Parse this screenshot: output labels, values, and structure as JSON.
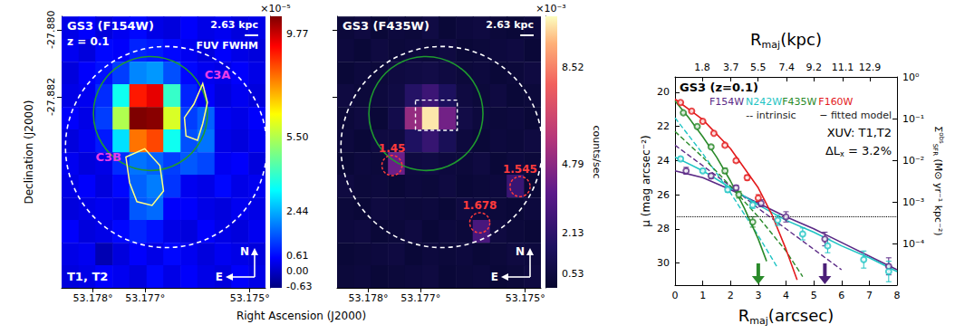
{
  "chart_data": [
    {
      "type": "heatmap",
      "title": "GS3 (F154W)",
      "subtitle": "z = 0.1",
      "annotation": "T1, T2",
      "scale_bar": {
        "label": "2.63 kpc",
        "length": 0.0004,
        "note": "FUV FWHM"
      },
      "compass": [
        "N",
        "E"
      ],
      "xlabel": "Right Ascension (J2000)",
      "ylabel": "Declination (J2000)",
      "xlim": [
        53.1786,
        53.1747
      ],
      "ylim": [
        -27.8877,
        -27.8796
      ],
      "xticks": [
        {
          "value": 53.178,
          "label": "53.178°"
        },
        {
          "value": 53.177,
          "label": "53.177°"
        },
        {
          "value": 53.175,
          "label": "53.175°"
        }
      ],
      "yticks": [
        {
          "value": -27.88,
          "label": "-27.880"
        },
        -27.882
      ],
      "cells": {
        "ra": [
          53.17844,
          53.17811,
          53.17779,
          53.17746,
          53.17714,
          53.17681,
          53.17649,
          53.17616,
          53.17584,
          53.17551,
          53.17519,
          53.17486
        ],
        "dec": [
          -27.87994,
          -27.88061,
          -27.88129,
          -27.88196,
          -27.88264,
          -27.88331,
          -27.88399,
          -27.88466,
          -27.88534,
          -27.88601,
          -27.88669,
          -27.88736
        ],
        "values": [
          [
            0.3,
            0.5,
            0.2,
            0.4,
            0.6,
            0.3,
            0.2,
            0.5,
            0.3,
            0.4,
            0.2,
            0.3
          ],
          [
            0.4,
            0.2,
            0.6,
            0.5,
            0.9,
            0.8,
            0.6,
            0.4,
            0.2,
            0.5,
            0.3,
            0.2
          ],
          [
            0.2,
            0.5,
            0.7,
            1.2,
            2.0,
            2.2,
            1.4,
            0.6,
            0.4,
            0.3,
            0.5,
            0.3
          ],
          [
            0.3,
            0.4,
            1.0,
            3.5,
            9.0,
            9.5,
            4.0,
            0.9,
            0.5,
            0.2,
            0.4,
            0.2
          ],
          [
            0.5,
            0.3,
            1.2,
            5.5,
            10.5,
            10.4,
            6.0,
            1.2,
            1.6,
            0.4,
            0.3,
            0.5
          ],
          [
            0.2,
            0.4,
            0.8,
            3.0,
            8.0,
            8.5,
            3.5,
            1.4,
            1.8,
            0.3,
            0.2,
            0.4
          ],
          [
            0.4,
            0.2,
            0.3,
            1.0,
            1.8,
            1.6,
            1.2,
            1.5,
            1.3,
            0.4,
            0.5,
            0.2
          ],
          [
            0.3,
            0.5,
            0.2,
            0.6,
            1.6,
            1.9,
            1.1,
            0.4,
            0.3,
            0.6,
            0.3,
            0.4
          ],
          [
            0.2,
            0.3,
            0.4,
            0.3,
            1.5,
            1.7,
            0.5,
            0.5,
            0.3,
            0.2,
            0.4,
            0.3
          ],
          [
            0.5,
            0.2,
            0.3,
            0.6,
            0.9,
            0.7,
            0.3,
            0.2,
            0.5,
            0.3,
            0.2,
            0.4
          ],
          [
            0.3,
            0.4,
            -0.2,
            0.2,
            0.5,
            0.3,
            0.6,
            0.4,
            0.2,
            0.4,
            0.3,
            0.2
          ],
          [
            0.2,
            0.3,
            0.5,
            0.4,
            0.2,
            0.6,
            0.3,
            0.5,
            0.3,
            0.2,
            0.5,
            0.3
          ]
        ]
      },
      "colorbar": {
        "label": "×10⁻⁵",
        "lim": [
          -0.7,
          10.5
        ],
        "ticks": [
          -0.63,
          {
            "value": 0,
            "label": "0.00"
          },
          0.61,
          2.44,
          {
            "value": 5.5,
            "label": "5.50"
          },
          9.77
        ]
      },
      "apertures": [
        {
          "ra": 53.1766,
          "dec": -27.8835,
          "radius": 0.003,
          "color": "#ffffff",
          "line_style": "dashed"
        },
        {
          "ra": 53.1769,
          "dec": -27.8825,
          "radius": 0.0017,
          "color": "#1f9a2f",
          "line_style": "solid"
        }
      ],
      "regions": [
        {
          "label": "C3A",
          "color": "#e83de8",
          "ra": [
            53.1759,
            53.17581,
            53.1759,
            53.176,
            53.17622,
            53.17625,
            53.17607
          ],
          "dec": [
            -27.88161,
            -27.88217,
            -27.8828,
            -27.8833,
            -27.88317,
            -27.88262,
            -27.88222
          ]
        },
        {
          "label": "C3B",
          "color": "#e83de8",
          "ra": [
            53.17737,
            53.17701,
            53.17672,
            53.17665,
            53.17687,
            53.17716,
            53.1773
          ],
          "dec": [
            -27.8838,
            -27.88355,
            -27.88405,
            -27.88481,
            -27.88524,
            -27.88513,
            -27.88456
          ]
        }
      ]
    },
    {
      "type": "heatmap",
      "title": "GS3 (F435W)",
      "scale_bar": {
        "label": "2.63 kpc",
        "length": 0.0004
      },
      "compass": [
        "N",
        "E"
      ],
      "tick_labels": "x",
      "xlim": [
        53.1786,
        53.1747
      ],
      "ylim": [
        -27.8877,
        -27.8796
      ],
      "xticks": [
        {
          "value": 53.178,
          "label": "53.178°"
        },
        {
          "value": 53.177,
          "label": "53.177°"
        },
        {
          "value": 53.175,
          "label": "53.175°"
        }
      ],
      "yticks": [
        {
          "value": -27.88,
          "label": "-27.880"
        },
        -27.882
      ],
      "cells": {
        "ra": [
          53.17844,
          53.17811,
          53.17779,
          53.17746,
          53.17714,
          53.17681,
          53.17649,
          53.17616,
          53.17584,
          53.17551,
          53.17519,
          53.17486
        ],
        "dec": [
          -27.87994,
          -27.88061,
          -27.88129,
          -27.88196,
          -27.88264,
          -27.88331,
          -27.88399,
          -27.88466,
          -27.88534,
          -27.88601,
          -27.88669,
          -27.88736
        ],
        "values": [
          [
            0.4,
            0.6,
            0.3,
            0.5,
            0.4,
            0.7,
            0.3,
            0.5,
            0.6,
            0.4,
            0.3,
            0.5
          ],
          [
            0.5,
            0.3,
            0.6,
            0.4,
            0.5,
            0.4,
            0.6,
            0.3,
            0.4,
            0.5,
            0.6,
            0.3
          ],
          [
            0.3,
            0.5,
            0.4,
            0.6,
            0.7,
            0.8,
            0.6,
            0.4,
            0.5,
            0.3,
            0.4,
            0.6
          ],
          [
            0.6,
            0.4,
            0.5,
            0.7,
            1.8,
            2.6,
            1.5,
            0.6,
            0.4,
            0.6,
            0.3,
            0.4
          ],
          [
            0.4,
            0.6,
            0.3,
            0.9,
            5.0,
            10.2,
            4.2,
            0.8,
            0.5,
            0.4,
            0.5,
            0.3
          ],
          [
            0.5,
            0.3,
            0.6,
            0.6,
            1.6,
            2.4,
            1.3,
            0.5,
            0.3,
            0.5,
            0.4,
            0.6
          ],
          [
            0.3,
            0.5,
            0.4,
            4.0,
            0.6,
            0.7,
            0.5,
            0.4,
            0.6,
            0.3,
            0.5,
            0.4
          ],
          [
            0.6,
            0.4,
            0.5,
            0.3,
            0.5,
            0.4,
            0.6,
            0.3,
            0.4,
            0.5,
            2.5,
            0.3
          ],
          [
            0.4,
            0.3,
            0.6,
            0.5,
            0.4,
            0.5,
            0.3,
            0.6,
            0.5,
            0.4,
            0.3,
            0.5
          ],
          [
            0.5,
            0.6,
            0.3,
            0.4,
            0.6,
            0.3,
            0.5,
            0.4,
            3.0,
            0.6,
            0.4,
            0.3
          ],
          [
            0.3,
            0.4,
            0.5,
            0.6,
            0.3,
            0.5,
            0.4,
            0.5,
            0.3,
            0.4,
            0.6,
            0.5
          ],
          [
            0.4,
            0.5,
            0.3,
            0.4,
            0.5,
            0.6,
            0.3,
            0.4,
            0.5,
            0.3,
            0.4,
            0.6
          ]
        ]
      },
      "colorbar": {
        "label": "×10⁻³",
        "title": "counts/sec",
        "lim": [
          0,
          10.5
        ],
        "ticks": [
          0.53,
          2.13,
          4.79,
          8.52
        ]
      },
      "apertures": [
        {
          "ra": 53.1766,
          "dec": -27.8835,
          "radius": 0.003,
          "color": "#ffffff",
          "line_style": "dashed"
        },
        {
          "ra": 53.1769,
          "dec": -27.8825,
          "radius": 0.0017,
          "color": "#1f9a2f",
          "line_style": "solid"
        }
      ],
      "box": {
        "ra": [
          53.1771,
          53.1763
        ],
        "dec": [
          -27.8821,
          -27.883
        ],
        "color": "#ffffff",
        "line_style": "dashed"
      },
      "sources": [
        {
          "ra": 53.17755,
          "dec": -27.88405,
          "radius": 0.0003,
          "label": "1.45",
          "color": "#ff3b3b",
          "line_style": "dashed"
        },
        {
          "ra": 53.17587,
          "dec": -27.88576,
          "radius": 0.0003,
          "label": "1.678",
          "color": "#ff3b3b",
          "line_style": "dashed"
        },
        {
          "ra": 53.1751,
          "dec": -27.88468,
          "radius": 0.0003,
          "label": "1.545",
          "color": "#ff3b3b",
          "line_style": "dashed"
        }
      ]
    },
    {
      "type": "line",
      "title": "GS3 (z=0.1)",
      "xlabel": {
        "base": "R",
        "sub": "maj",
        "rest": "(arcsec)"
      },
      "x2label": {
        "base": "R",
        "sub": "maj",
        "rest": "(kpc)"
      },
      "ylabel": "μ (mag arcsec⁻²)",
      "y2label": {
        "base": "Σ",
        "sup": "obs",
        "sub": "SFR",
        "rest": " (M⊙ yr⁻¹ kpc⁻²)"
      },
      "xlim": [
        0,
        8
      ],
      "xticks": [
        0,
        1,
        2,
        3,
        4,
        5,
        6,
        7,
        8
      ],
      "x2lim": [
        0,
        14.7
      ],
      "x2ticks": [
        1.8,
        3.7,
        5.5,
        7.4,
        9.2,
        11.1,
        12.9
      ],
      "ylim": [
        31.3,
        19.1
      ],
      "yticks": [
        20,
        22,
        24,
        26,
        28,
        30
      ],
      "y2lim": [
        1e-05,
        1
      ],
      "y2ticks": [
        {
          "value": 1,
          "label": "10⁰"
        },
        {
          "value": 0.1,
          "label": "10⁻¹"
        },
        {
          "value": 0.01,
          "label": "10⁻²"
        },
        {
          "value": 0.001,
          "label": "10⁻³"
        },
        {
          "value": 0.0001,
          "label": "10⁻⁴"
        }
      ],
      "log": "y2",
      "grid": false,
      "legend": "upper left",
      "legend_notes": [
        "-- intrinsic",
        "− fitted model"
      ],
      "annotations": [
        "XUV: T1,T2"
      ],
      "delta": {
        "base": "ΔL",
        "sub": "x",
        "rest": " = 3.2%"
      },
      "series": [
        {
          "name": "F154W",
          "color": "#5b2a86",
          "observed": {
            "x": [
              0.4,
              1.3,
              2.2,
              3.1,
              4.0,
              5.4,
              7.7
            ],
            "values": [
              24.6,
              24.9,
              25.6,
              26.5,
              27.3,
              28.6,
              30.2
            ],
            "errors": [
              0.2,
              0.15,
              0.15,
              0.2,
              0.3,
              0.4,
              0.5
            ]
          },
          "model": {
            "x": [
              0,
              1,
              2,
              3,
              4,
              5,
              6,
              7,
              8
            ],
            "values": [
              24.6,
              25.0,
              25.7,
              26.5,
              27.3,
              28.0,
              28.8,
              29.6,
              30.4
            ]
          },
          "intrinsic": {
            "x": [
              0,
              1,
              2,
              3,
              4,
              5,
              6
            ],
            "values": [
              23.1,
              24.3,
              25.5,
              26.8,
              28.0,
              29.2,
              30.4
            ]
          }
        },
        {
          "name": "N242W",
          "color": "#1fc4c4",
          "observed": {
            "x": [
              0.2,
              1.0,
              1.9,
              2.8,
              3.7,
              4.6,
              5.5,
              6.8,
              7.7
            ],
            "values": [
              23.9,
              24.6,
              25.7,
              26.6,
              27.5,
              28.3,
              29.0,
              29.8,
              30.5
            ],
            "errors": [
              0.1,
              0.1,
              0.15,
              0.2,
              0.3,
              0.35,
              0.4,
              0.5,
              0.6
            ]
          },
          "model": {
            "x": [
              0,
              1,
              2,
              3,
              4,
              5,
              6,
              7,
              8
            ],
            "values": [
              23.8,
              24.6,
              25.6,
              26.6,
              27.5,
              28.2,
              29.0,
              29.7,
              30.5
            ]
          },
          "intrinsic": {
            "x": [
              0,
              1,
              2,
              3,
              3.7
            ],
            "values": [
              21.5,
              23.6,
              25.9,
              28.4,
              30.3
            ]
          }
        },
        {
          "name": "F435W",
          "color": "#2a8a2a",
          "observed": {
            "x": [
              0.3,
              0.8,
              1.3,
              1.8,
              2.3,
              2.8
            ],
            "values": [
              21.2,
              22.0,
              23.2,
              24.6,
              26.0,
              27.6
            ],
            "errors": [
              0.05,
              0.05,
              0.1,
              0.15,
              0.2,
              0.3
            ]
          },
          "model": {
            "x": [
              0,
              0.5,
              1,
              1.5,
              2,
              2.5,
              3,
              3.3
            ],
            "values": [
              20.5,
              21.5,
              22.6,
              23.8,
              25.2,
              26.8,
              28.6,
              29.9
            ]
          },
          "intrinsic": {
            "x": [
              0,
              1,
              2,
              3,
              4,
              4.6
            ],
            "values": [
              22.3,
              23.8,
              25.5,
              27.3,
              29.3,
              30.8
            ]
          }
        },
        {
          "name": "F160W",
          "color": "#e31a1c",
          "observed": {
            "x": [
              0.2,
              0.6,
              1.0,
              1.4,
              1.8,
              2.2,
              2.6,
              3.0
            ],
            "values": [
              20.6,
              21.1,
              21.7,
              22.4,
              23.1,
              24.0,
              25.0,
              26.2
            ],
            "errors": [
              0.03,
              0.03,
              0.05,
              0.05,
              0.08,
              0.1,
              0.15,
              0.2
            ]
          },
          "model": {
            "x": [
              0,
              1,
              2,
              3,
              3.5,
              4,
              4.4
            ],
            "values": [
              20.4,
              21.6,
              23.3,
              25.6,
              27.2,
              29.2,
              31.0
            ]
          }
        }
      ],
      "reference_lines": [
        {
          "y": 27.3,
          "color": "#000000",
          "line_style": "dotted"
        }
      ],
      "arrows": [
        {
          "x": 3.0,
          "color": "#2a8a2a"
        },
        {
          "x": 5.4,
          "color": "#4b1f78"
        }
      ]
    }
  ]
}
